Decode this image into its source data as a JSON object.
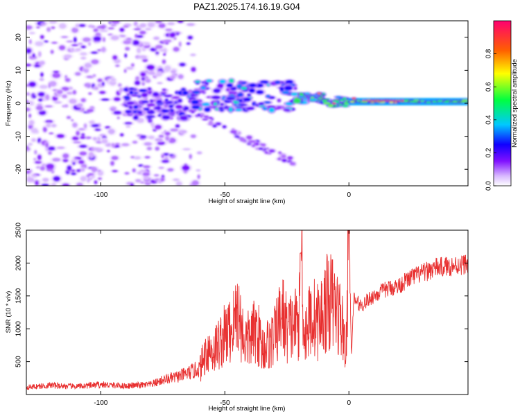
{
  "title": "PAZ1.2025.174.16.19.G04",
  "chart_data": [
    {
      "type": "heatmap",
      "xlabel": "Height of straight line (km)",
      "ylabel": "Frequency (Hz)",
      "xlim": [
        -130,
        48
      ],
      "ylim": [
        -25,
        25
      ],
      "xticks": [
        -100,
        -50,
        0
      ],
      "yticks": [
        -20,
        -10,
        0,
        10,
        20
      ],
      "colorbar": {
        "label": "Normalized spectral amplitude",
        "range": [
          0,
          1
        ],
        "ticks": [
          0.0,
          0.2,
          0.4,
          0.6,
          0.8
        ],
        "colormap": [
          "#ffffff",
          "#c99ff0",
          "#7a10e0",
          "#2200ff",
          "#00d0ff",
          "#00ff40",
          "#ffff00",
          "#ff6000",
          "#ff0060"
        ]
      },
      "features": [
        {
          "x": [
            -130,
            -62
          ],
          "y": [
            -25,
            25
          ],
          "amplitude": 0.15
        },
        {
          "x": [
            -88,
            -20
          ],
          "y": [
            -5,
            7
          ],
          "amplitude": 0.4
        },
        {
          "x": [
            -60,
            -22
          ],
          "y": [
            -3,
            -18
          ],
          "amplitude": 0.15
        },
        {
          "x": [
            -20,
            0
          ],
          "y": [
            -1,
            4
          ],
          "amplitude": 0.6
        },
        {
          "x": [
            0,
            48
          ],
          "y": [
            0,
            1
          ],
          "amplitude": 0.75
        },
        {
          "x": [
            -6,
            -5
          ],
          "y": [
            0,
            0
          ],
          "amplitude": 1.0
        },
        {
          "x": [
            6,
            22
          ],
          "y": [
            0.8,
            0.8
          ],
          "amplitude": 1.0
        }
      ]
    },
    {
      "type": "line",
      "xlabel": "Height of straight line (km)",
      "ylabel": "SNR (10 * v/v)",
      "xlim": [
        -130,
        48
      ],
      "ylim": [
        0,
        2500
      ],
      "xticks": [
        -100,
        -50,
        0
      ],
      "yticks": [
        500,
        1000,
        1500,
        2000,
        2500
      ],
      "line_color": "#e83030",
      "series": [
        {
          "x": [
            -130,
            -120,
            -110,
            -100,
            -90,
            -80,
            -75,
            -70,
            -65,
            -60,
            -57,
            -55,
            -50,
            -47,
            -45,
            -42,
            -40,
            -37,
            -35,
            -30,
            -27,
            -25,
            -22,
            -20,
            -19,
            -18,
            -15,
            -12,
            -10,
            -8,
            -5,
            -3,
            -1,
            0,
            1,
            2,
            5,
            8,
            10,
            15,
            20,
            25,
            30,
            35,
            40,
            45,
            48
          ],
          "y": [
            110,
            140,
            120,
            150,
            130,
            150,
            220,
            260,
            320,
            400,
            700,
            650,
            900,
            1000,
            1300,
            800,
            850,
            1000,
            700,
            850,
            1250,
            1000,
            1050,
            1150,
            2150,
            900,
            1200,
            1100,
            1300,
            1450,
            1300,
            1100,
            700,
            2550,
            600,
            1450,
            1350,
            1450,
            1500,
            1600,
            1650,
            1780,
            1850,
            1930,
            1950,
            1970,
            2000
          ]
        }
      ]
    }
  ]
}
